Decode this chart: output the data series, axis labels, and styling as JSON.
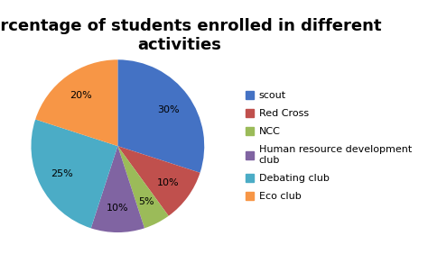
{
  "title": "Percentage of students enrolled in different\nactivities",
  "labels": [
    "scout",
    "Red Cross",
    "NCC",
    "Human resource development\nclub",
    "Debating club",
    "Eco club"
  ],
  "legend_labels": [
    "scout",
    "Red Cross",
    "NCC",
    "Human resource development\nclub",
    "Debating club",
    "Eco club"
  ],
  "values": [
    30,
    10,
    5,
    10,
    25,
    20
  ],
  "colors": [
    "#4472C4",
    "#C0504D",
    "#9BBB59",
    "#8064A2",
    "#4BACC6",
    "#F79646"
  ],
  "startangle": 90,
  "title_fontsize": 13,
  "legend_fontsize": 8,
  "autopct_fontsize": 8,
  "background_color": "#ffffff"
}
